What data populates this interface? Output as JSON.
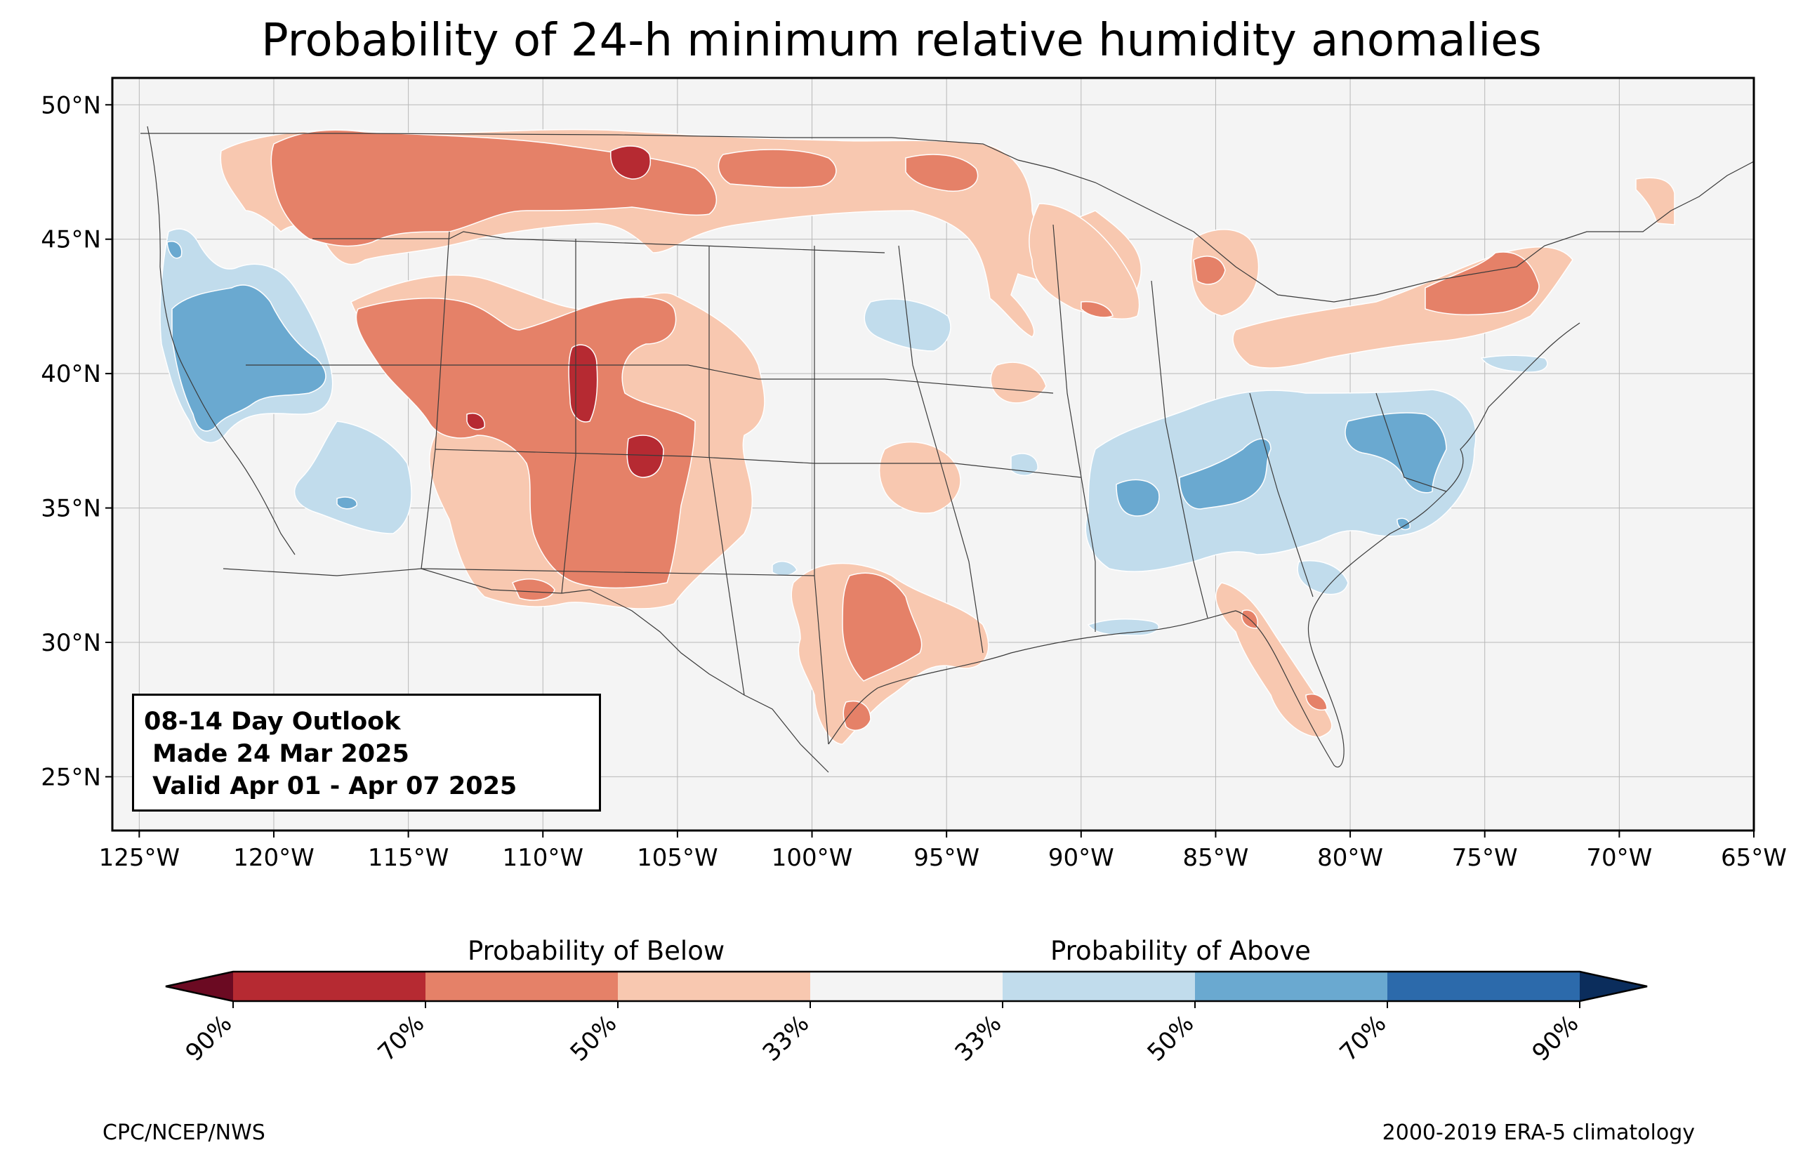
{
  "title": "Probability of 24-h minimum relative humidity anomalies",
  "map": {
    "lon_range": [
      -126,
      -65
    ],
    "lat_range": [
      23,
      51
    ],
    "lon_ticks": [
      {
        "value": -125,
        "label": "125°W"
      },
      {
        "value": -120,
        "label": "120°W"
      },
      {
        "value": -115,
        "label": "115°W"
      },
      {
        "value": -110,
        "label": "110°W"
      },
      {
        "value": -105,
        "label": "105°W"
      },
      {
        "value": -100,
        "label": "100°W"
      },
      {
        "value": -95,
        "label": "95°W"
      },
      {
        "value": -90,
        "label": "90°W"
      },
      {
        "value": -85,
        "label": "85°W"
      },
      {
        "value": -80,
        "label": "80°W"
      },
      {
        "value": -75,
        "label": "75°W"
      },
      {
        "value": -70,
        "label": "70°W"
      },
      {
        "value": -65,
        "label": "65°W"
      }
    ],
    "lat_ticks": [
      {
        "value": 25,
        "label": "25°N"
      },
      {
        "value": 30,
        "label": "30°N"
      },
      {
        "value": 35,
        "label": "35°N"
      },
      {
        "value": 40,
        "label": "40°N"
      },
      {
        "value": 45,
        "label": "45°N"
      },
      {
        "value": 50,
        "label": "50°N"
      }
    ],
    "gridlines": true,
    "background_color": "#f4f4f4"
  },
  "info_box": {
    "line1": "08-14 Day Outlook",
    "line2": " Made 24 Mar 2025",
    "line3": " Valid Apr 01 - Apr 07 2025"
  },
  "colorbar": {
    "below_label": "Probability of Below",
    "above_label": "Probability of Above",
    "colors": [
      "#6b0a22",
      "#b62a32",
      "#e58168",
      "#f8c8b0",
      "#f4f4f4",
      "#c1dcec",
      "#6aa9d0",
      "#2c6aab",
      "#0b2d5c"
    ],
    "tick_labels": [
      "90%",
      "70%",
      "50%",
      "33%",
      "33%",
      "50%",
      "70%",
      "90%"
    ]
  },
  "footer": {
    "left": "CPC/NCEP/NWS",
    "right": "2000-2019 ERA-5 climatology"
  }
}
